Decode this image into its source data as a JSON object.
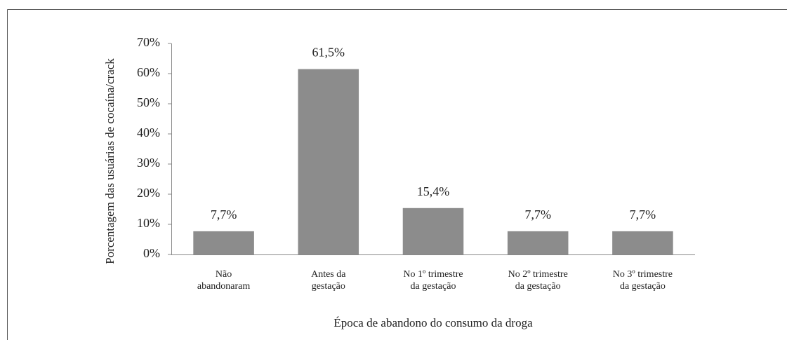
{
  "chart_data": {
    "type": "bar",
    "categories": [
      [
        "Não",
        "abandonaram"
      ],
      [
        "Antes da",
        "gestação"
      ],
      [
        "No 1º trimestre",
        "da gestação"
      ],
      [
        "No 2º trimestre",
        "da gestação"
      ],
      [
        "No 3º trimestre",
        "da gestação"
      ]
    ],
    "values": [
      7.7,
      61.5,
      15.4,
      7.7,
      7.7
    ],
    "value_labels": [
      "7,7%",
      "61,5%",
      "15,4%",
      "7,7%",
      "7,7%"
    ],
    "color": "#8c8c8c",
    "xlabel": "Época de abandono do consumo da droga",
    "ylabel": "Porcentagem das usuárias de cocaína/crack",
    "ylim": [
      0,
      70
    ],
    "yticks": [
      {
        "value": 0,
        "label": "0%"
      },
      {
        "value": 10,
        "label": "10%"
      },
      {
        "value": 20,
        "label": "20%"
      },
      {
        "value": 30,
        "label": "30%"
      },
      {
        "value": 40,
        "label": "40%"
      },
      {
        "value": 50,
        "label": "50%"
      },
      {
        "value": 60,
        "label": "60%"
      },
      {
        "value": 70,
        "label": "70%"
      }
    ],
    "grid": false
  }
}
